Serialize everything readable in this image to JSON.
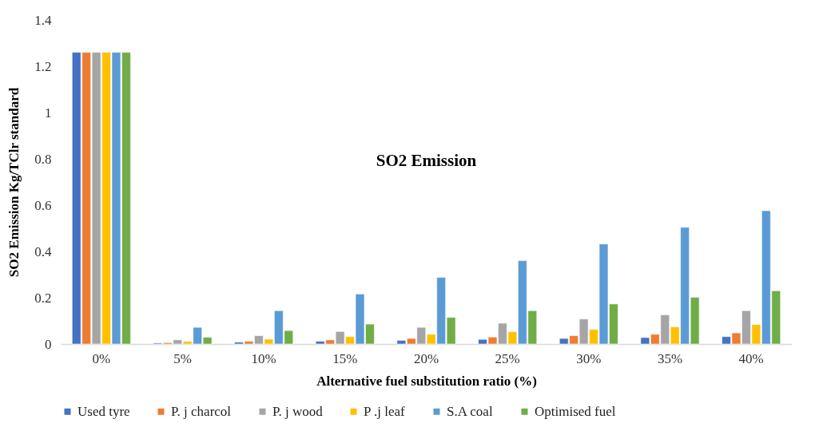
{
  "chart_data": {
    "type": "bar",
    "title": "SO2 Emission",
    "xlabel": "Alternative fuel substitution ratio (%)",
    "ylabel": "SO2 Emission Kg/TClr standard",
    "categories": [
      "0%",
      "5%",
      "10%",
      "15%",
      "20%",
      "25%",
      "30%",
      "35%",
      "40%"
    ],
    "series": [
      {
        "name": "Used tyre",
        "color": "#4472c4",
        "values": [
          1.26,
          0.004,
          0.008,
          0.012,
          0.016,
          0.02,
          0.024,
          0.028,
          0.032
        ]
      },
      {
        "name": "P. j charcol",
        "color": "#ed7d31",
        "values": [
          1.26,
          0.006,
          0.012,
          0.018,
          0.024,
          0.03,
          0.036,
          0.042,
          0.048
        ]
      },
      {
        "name": "P. j wood",
        "color": "#a5a5a5",
        "values": [
          1.26,
          0.018,
          0.036,
          0.054,
          0.072,
          0.09,
          0.108,
          0.126,
          0.144
        ]
      },
      {
        "name": "P .j leaf",
        "color": "#ffc000",
        "values": [
          1.26,
          0.011,
          0.021,
          0.032,
          0.042,
          0.053,
          0.063,
          0.074,
          0.084
        ]
      },
      {
        "name": "S.A coal",
        "color": "#5b9bd5",
        "values": [
          1.26,
          0.072,
          0.144,
          0.216,
          0.288,
          0.36,
          0.432,
          0.504,
          0.576
        ]
      },
      {
        "name": "Optimised fuel",
        "color": "#70ad47",
        "values": [
          1.26,
          0.029,
          0.058,
          0.086,
          0.115,
          0.144,
          0.173,
          0.202,
          0.23
        ]
      }
    ],
    "ylim": [
      0,
      1.4
    ],
    "yticks": [
      0,
      0.2,
      0.4,
      0.6,
      0.8,
      1,
      1.2,
      1.4
    ],
    "grid": false,
    "legend": "bottom"
  }
}
